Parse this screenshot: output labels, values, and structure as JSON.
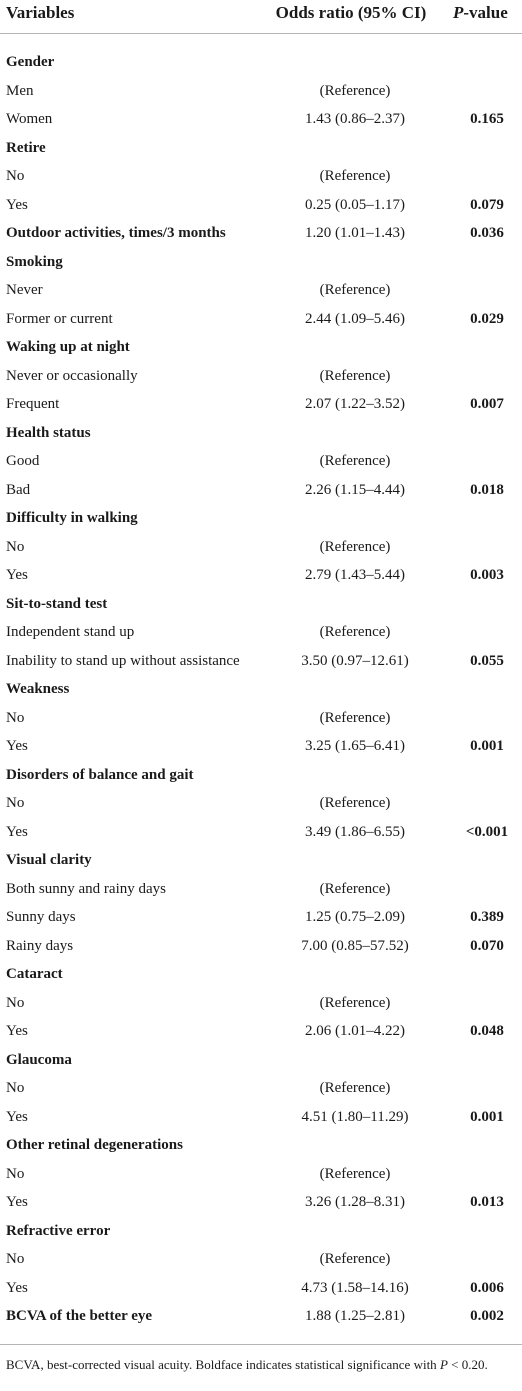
{
  "header": {
    "variables": "Variables",
    "odds_ratio": "Odds ratio (95% CI)",
    "p_value": [
      "P",
      "-value"
    ]
  },
  "rows": [
    {
      "name": "Gender",
      "levels": [
        {
          "name": "Men",
          "odds_ratio": "(Reference)"
        },
        {
          "name": "Women",
          "odds_ratio": "1.43 (0.86–2.37)",
          "p_value": "0.165"
        }
      ]
    },
    {
      "name": "Retire",
      "levels": [
        {
          "name": "No",
          "odds_ratio": "(Reference)"
        },
        {
          "name": "Yes",
          "odds_ratio": "0.25 (0.05–1.17)",
          "p_value": "0.079"
        }
      ]
    },
    {
      "name": "Outdoor activities, times/3 months",
      "odds_ratio": "1.20 (1.01–1.43)",
      "p_value": "0.036"
    },
    {
      "name": "Smoking",
      "levels": [
        {
          "name": "Never",
          "odds_ratio": "(Reference)"
        },
        {
          "name": "Former or current",
          "odds_ratio": "2.44 (1.09–5.46)",
          "p_value": "0.029"
        }
      ]
    },
    {
      "name": "Waking up at night",
      "levels": [
        {
          "name": "Never or occasionally",
          "odds_ratio": "(Reference)"
        },
        {
          "name": "Frequent",
          "odds_ratio": "2.07 (1.22–3.52)",
          "p_value": "0.007"
        }
      ]
    },
    {
      "name": "Health status",
      "levels": [
        {
          "name": "Good",
          "odds_ratio": "(Reference)"
        },
        {
          "name": "Bad",
          "odds_ratio": "2.26 (1.15–4.44)",
          "p_value": "0.018"
        }
      ]
    },
    {
      "name": "Difficulty in walking",
      "levels": [
        {
          "name": "No",
          "odds_ratio": "(Reference)"
        },
        {
          "name": "Yes",
          "odds_ratio": "2.79 (1.43–5.44)",
          "p_value": "0.003"
        }
      ]
    },
    {
      "name": "Sit-to-stand test",
      "levels": [
        {
          "name": "Independent stand up",
          "odds_ratio": "(Reference)"
        },
        {
          "name": "Inability to stand up without assistance",
          "odds_ratio": "3.50 (0.97–12.61)",
          "p_value": "0.055"
        }
      ]
    },
    {
      "name": "Weakness",
      "levels": [
        {
          "name": "No",
          "odds_ratio": "(Reference)"
        },
        {
          "name": "Yes",
          "odds_ratio": "3.25 (1.65–6.41)",
          "p_value": "0.001"
        }
      ]
    },
    {
      "name": "Disorders of balance and gait",
      "levels": [
        {
          "name": "No",
          "odds_ratio": "(Reference)"
        },
        {
          "name": "Yes",
          "odds_ratio": "3.49 (1.86–6.55)",
          "p_value": "<0.001"
        }
      ]
    },
    {
      "name": "Visual clarity",
      "levels": [
        {
          "name": "Both sunny and rainy days",
          "odds_ratio": "(Reference)"
        },
        {
          "name": "Sunny days",
          "odds_ratio": "1.25 (0.75–2.09)",
          "p_value": "0.389"
        },
        {
          "name": "Rainy days",
          "odds_ratio": "7.00 (0.85–57.52)",
          "p_value": "0.070"
        }
      ]
    },
    {
      "name": "Cataract",
      "levels": [
        {
          "name": "No",
          "odds_ratio": "(Reference)"
        },
        {
          "name": "Yes",
          "odds_ratio": "2.06 (1.01–4.22)",
          "p_value": "0.048"
        }
      ]
    },
    {
      "name": "Glaucoma",
      "levels": [
        {
          "name": "No",
          "odds_ratio": "(Reference)"
        },
        {
          "name": "Yes",
          "odds_ratio": "4.51 (1.80–11.29)",
          "p_value": "0.001"
        }
      ]
    },
    {
      "name": "Other retinal degenerations",
      "levels": [
        {
          "name": "No",
          "odds_ratio": "(Reference)"
        },
        {
          "name": "Yes",
          "odds_ratio": "3.26 (1.28–8.31)",
          "p_value": "0.013"
        }
      ]
    },
    {
      "name": "Refractive error",
      "levels": [
        {
          "name": "No",
          "odds_ratio": "(Reference)"
        },
        {
          "name": "Yes",
          "odds_ratio": "4.73 (1.58–14.16)",
          "p_value": "0.006"
        }
      ]
    },
    {
      "name": "BCVA of the better eye",
      "odds_ratio": "1.88 (1.25–2.81)",
      "p_value": "0.002"
    }
  ],
  "footnote": [
    "BCVA, best-corrected visual acuity. Boldface indicates statistical significance with",
    "P",
    "< 0.20."
  ]
}
